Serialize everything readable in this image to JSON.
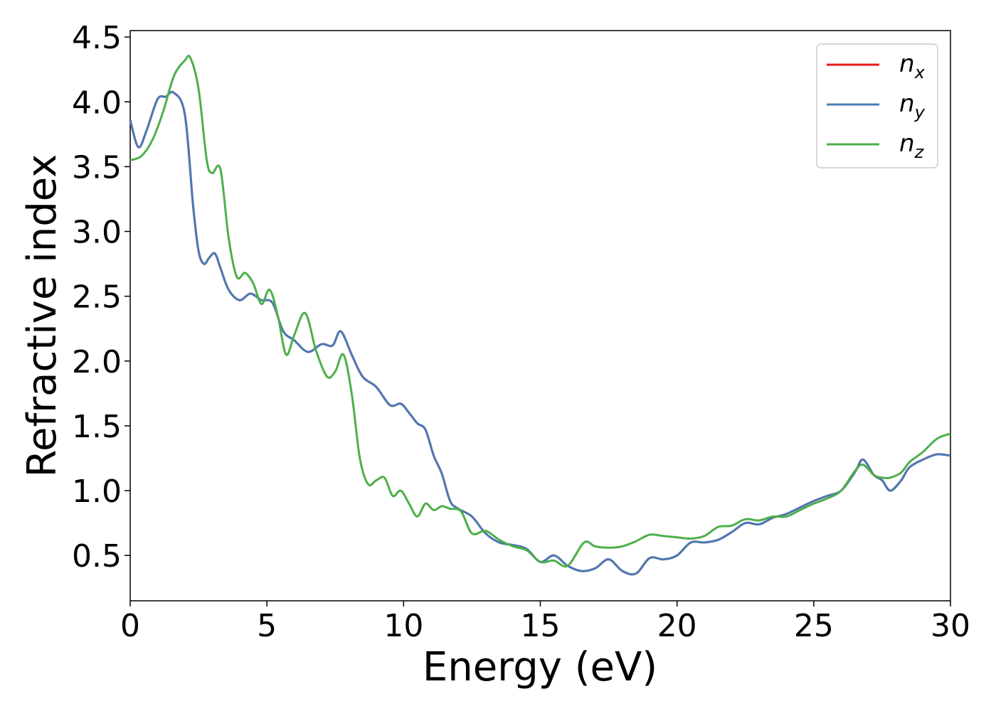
{
  "chart_data": {
    "type": "line",
    "xlabel": "Energy (eV)",
    "ylabel": "Refractive index",
    "xlim": [
      0,
      30
    ],
    "ylim": [
      0.15,
      4.55
    ],
    "xticks": [
      0,
      5,
      10,
      15,
      20,
      25,
      30
    ],
    "xtick_labels": [
      "0",
      "5",
      "10",
      "15",
      "20",
      "25",
      "30"
    ],
    "yticks": [
      0.5,
      1.0,
      1.5,
      2.0,
      2.5,
      3.0,
      3.5,
      4.0,
      4.5
    ],
    "ytick_labels": [
      "0.5",
      "1.0",
      "1.5",
      "2.0",
      "2.5",
      "3.0",
      "3.5",
      "4.0",
      "4.5"
    ],
    "grid": false,
    "legend_position": "top-right",
    "series": [
      {
        "name": "n",
        "subscript": "x",
        "color": "#e41a1c",
        "x": [
          0,
          0.3,
          0.6,
          1.0,
          1.3,
          1.6,
          2.0,
          2.3,
          2.5,
          2.7,
          2.9,
          3.1,
          3.3,
          3.6,
          4.0,
          4.4,
          4.8,
          5.2,
          5.6,
          6.0,
          6.5,
          7.0,
          7.4,
          7.7,
          8.1,
          8.5,
          9.0,
          9.5,
          9.9,
          10.2,
          10.5,
          10.8,
          11.1,
          11.4,
          11.7,
          12.0,
          12.5,
          13.0,
          13.5,
          14.0,
          14.5,
          15.0,
          15.5,
          16.0,
          16.5,
          17.0,
          17.5,
          18.0,
          18.5,
          19.0,
          19.5,
          20.0,
          20.5,
          21.0,
          21.5,
          22.0,
          22.5,
          23.0,
          23.5,
          24.0,
          24.5,
          25.0,
          25.5,
          26.0,
          26.5,
          26.8,
          27.2,
          27.5,
          27.8,
          28.2,
          28.5,
          29.0,
          29.5,
          30.0
        ],
        "values": [
          3.86,
          3.65,
          3.78,
          4.02,
          4.04,
          4.07,
          3.9,
          3.2,
          2.85,
          2.75,
          2.8,
          2.83,
          2.72,
          2.55,
          2.47,
          2.52,
          2.47,
          2.45,
          2.23,
          2.16,
          2.07,
          2.13,
          2.12,
          2.23,
          2.05,
          1.88,
          1.8,
          1.66,
          1.67,
          1.6,
          1.52,
          1.47,
          1.27,
          1.13,
          0.92,
          0.86,
          0.8,
          0.67,
          0.6,
          0.58,
          0.55,
          0.45,
          0.5,
          0.42,
          0.38,
          0.4,
          0.47,
          0.38,
          0.36,
          0.48,
          0.47,
          0.5,
          0.6,
          0.6,
          0.62,
          0.68,
          0.75,
          0.74,
          0.79,
          0.82,
          0.87,
          0.92,
          0.96,
          1.0,
          1.14,
          1.24,
          1.12,
          1.08,
          1.0,
          1.08,
          1.18,
          1.24,
          1.28,
          1.27
        ]
      },
      {
        "name": "n",
        "subscript": "y",
        "color": "#4a7ab5",
        "x": [
          0,
          0.3,
          0.6,
          1.0,
          1.3,
          1.6,
          2.0,
          2.3,
          2.5,
          2.7,
          2.9,
          3.1,
          3.3,
          3.6,
          4.0,
          4.4,
          4.8,
          5.2,
          5.6,
          6.0,
          6.5,
          7.0,
          7.4,
          7.7,
          8.1,
          8.5,
          9.0,
          9.5,
          9.9,
          10.2,
          10.5,
          10.8,
          11.1,
          11.4,
          11.7,
          12.0,
          12.5,
          13.0,
          13.5,
          14.0,
          14.5,
          15.0,
          15.5,
          16.0,
          16.5,
          17.0,
          17.5,
          18.0,
          18.5,
          19.0,
          19.5,
          20.0,
          20.5,
          21.0,
          21.5,
          22.0,
          22.5,
          23.0,
          23.5,
          24.0,
          24.5,
          25.0,
          25.5,
          26.0,
          26.5,
          26.8,
          27.2,
          27.5,
          27.8,
          28.2,
          28.5,
          29.0,
          29.5,
          30.0
        ],
        "values": [
          3.86,
          3.65,
          3.78,
          4.02,
          4.04,
          4.07,
          3.9,
          3.2,
          2.85,
          2.75,
          2.8,
          2.83,
          2.72,
          2.55,
          2.47,
          2.52,
          2.47,
          2.45,
          2.23,
          2.16,
          2.07,
          2.13,
          2.12,
          2.23,
          2.05,
          1.88,
          1.8,
          1.66,
          1.67,
          1.6,
          1.52,
          1.47,
          1.27,
          1.13,
          0.92,
          0.86,
          0.8,
          0.67,
          0.6,
          0.58,
          0.55,
          0.45,
          0.5,
          0.42,
          0.38,
          0.4,
          0.47,
          0.38,
          0.36,
          0.48,
          0.47,
          0.5,
          0.6,
          0.6,
          0.62,
          0.68,
          0.75,
          0.74,
          0.79,
          0.82,
          0.87,
          0.92,
          0.96,
          1.0,
          1.14,
          1.24,
          1.12,
          1.08,
          1.0,
          1.08,
          1.18,
          1.24,
          1.28,
          1.27
        ]
      },
      {
        "name": "n",
        "subscript": "z",
        "color": "#4daf4a",
        "x": [
          0,
          0.4,
          0.8,
          1.2,
          1.6,
          2.0,
          2.2,
          2.5,
          2.8,
          3.0,
          3.3,
          3.6,
          3.9,
          4.2,
          4.5,
          4.8,
          5.1,
          5.4,
          5.7,
          6.0,
          6.4,
          6.8,
          7.2,
          7.5,
          7.8,
          8.1,
          8.4,
          8.7,
          9.0,
          9.3,
          9.6,
          9.9,
          10.2,
          10.5,
          10.8,
          11.1,
          11.4,
          11.7,
          12.1,
          12.5,
          13.0,
          13.5,
          14.0,
          14.5,
          15.0,
          15.5,
          16.0,
          16.6,
          17.0,
          17.5,
          18.0,
          18.5,
          19.0,
          19.5,
          20.0,
          20.5,
          21.0,
          21.5,
          22.0,
          22.5,
          23.0,
          23.5,
          24.0,
          24.5,
          25.0,
          25.5,
          26.0,
          26.5,
          26.8,
          27.2,
          27.5,
          27.8,
          28.2,
          28.5,
          29.0,
          29.5,
          30.0
        ],
        "values": [
          3.55,
          3.58,
          3.7,
          3.92,
          4.2,
          4.32,
          4.34,
          4.1,
          3.55,
          3.45,
          3.48,
          2.95,
          2.65,
          2.68,
          2.6,
          2.44,
          2.55,
          2.35,
          2.05,
          2.2,
          2.37,
          2.08,
          1.88,
          1.92,
          2.05,
          1.75,
          1.25,
          1.05,
          1.08,
          1.1,
          0.96,
          1.0,
          0.9,
          0.8,
          0.9,
          0.85,
          0.88,
          0.86,
          0.84,
          0.67,
          0.69,
          0.62,
          0.57,
          0.54,
          0.45,
          0.46,
          0.42,
          0.6,
          0.57,
          0.56,
          0.57,
          0.61,
          0.66,
          0.65,
          0.64,
          0.63,
          0.65,
          0.72,
          0.73,
          0.78,
          0.77,
          0.8,
          0.8,
          0.85,
          0.9,
          0.94,
          1.0,
          1.15,
          1.2,
          1.12,
          1.1,
          1.1,
          1.14,
          1.22,
          1.3,
          1.4,
          1.44
        ]
      }
    ]
  }
}
